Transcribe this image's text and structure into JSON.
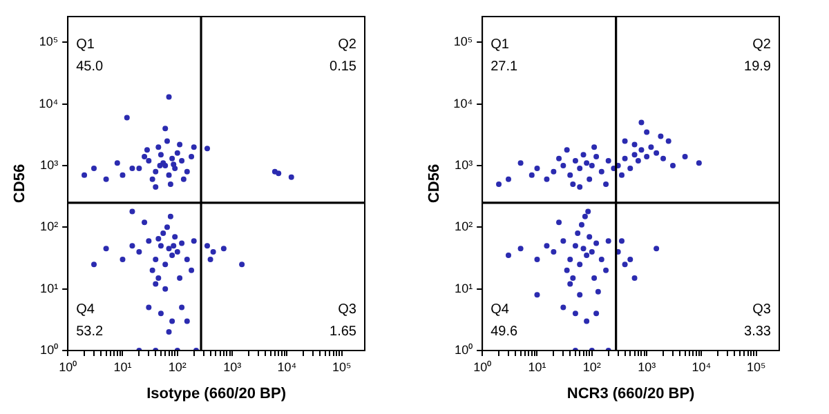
{
  "chart_data": [
    {
      "type": "scatter",
      "xlabel": "Isotype (660/20 BP)",
      "ylabel": "CD56",
      "log": "xy",
      "grid": false,
      "marker": "circle",
      "xlim": [
        1,
        262144
      ],
      "ylim": [
        1,
        262144
      ],
      "xticks": [
        {
          "value": 1,
          "label": "10⁰"
        },
        {
          "value": 2,
          "label": null
        },
        {
          "value": 3,
          "label": null
        },
        {
          "value": 4,
          "label": null
        },
        {
          "value": 5,
          "label": null
        },
        {
          "value": 6,
          "label": null
        },
        {
          "value": 7,
          "label": null
        },
        {
          "value": 8,
          "label": null
        },
        {
          "value": 9,
          "label": null
        },
        {
          "value": 10,
          "label": "10¹"
        },
        {
          "value": 20,
          "label": null
        },
        {
          "value": 30,
          "label": null
        },
        {
          "value": 40,
          "label": null
        },
        {
          "value": 50,
          "label": null
        },
        {
          "value": 60,
          "label": null
        },
        {
          "value": 70,
          "label": null
        },
        {
          "value": 80,
          "label": null
        },
        {
          "value": 90,
          "label": null
        },
        {
          "value": 100,
          "label": "10²"
        },
        {
          "value": 200,
          "label": null
        },
        {
          "value": 300,
          "label": null
        },
        {
          "value": 400,
          "label": null
        },
        {
          "value": 500,
          "label": null
        },
        {
          "value": 600,
          "label": null
        },
        {
          "value": 700,
          "label": null
        },
        {
          "value": 800,
          "label": null
        },
        {
          "value": 900,
          "label": null
        },
        {
          "value": 1000,
          "label": "10³"
        },
        {
          "value": 2000,
          "label": null
        },
        {
          "value": 3000,
          "label": null
        },
        {
          "value": 4000,
          "label": null
        },
        {
          "value": 5000,
          "label": null
        },
        {
          "value": 6000,
          "label": null
        },
        {
          "value": 7000,
          "label": null
        },
        {
          "value": 8000,
          "label": null
        },
        {
          "value": 9000,
          "label": null
        },
        {
          "value": 10000,
          "label": "10⁴"
        },
        {
          "value": 20000,
          "label": null
        },
        {
          "value": 30000,
          "label": null
        },
        {
          "value": 40000,
          "label": null
        },
        {
          "value": 50000,
          "label": null
        },
        {
          "value": 60000,
          "label": null
        },
        {
          "value": 70000,
          "label": null
        },
        {
          "value": 80000,
          "label": null
        },
        {
          "value": 90000,
          "label": null
        },
        {
          "value": 100000,
          "label": "10⁵"
        }
      ],
      "yticks": [
        {
          "value": 1,
          "label": "10⁰"
        },
        {
          "value": 10,
          "label": "10¹"
        },
        {
          "value": 100,
          "label": "10²"
        },
        {
          "value": 1000,
          "label": "10³"
        },
        {
          "value": 10000,
          "label": "10⁴"
        },
        {
          "value": 100000,
          "label": "10⁵"
        }
      ],
      "ref_lines": [
        {
          "axis": "x",
          "value": 270,
          "color": "#000000"
        },
        {
          "axis": "y",
          "value": 250,
          "color": "#000000"
        }
      ],
      "annotations": [
        "Q1",
        "45.0",
        "Q2",
        "0.15",
        "Q4",
        "53.2",
        "Q3",
        "1.65"
      ],
      "series": [
        {
          "color": "#2b2bb0",
          "x": [
            20,
            30,
            40,
            50,
            60,
            70,
            80,
            45,
            35,
            55,
            90,
            100,
            120,
            150,
            25,
            15,
            10,
            8,
            5,
            3,
            2,
            65,
            110,
            75,
            40,
            130,
            180,
            200,
            60,
            70,
            12,
            28,
            85,
            48,
            20,
            30,
            40,
            50,
            60,
            70,
            80,
            90,
            100,
            120,
            150,
            35,
            45,
            55,
            65,
            25,
            15,
            10,
            5,
            3,
            200,
            180,
            110,
            40,
            60,
            30,
            50,
            80,
            120,
            150,
            70,
            100,
            40,
            20,
            220,
            15,
            75,
            45,
            85,
            350,
            450,
            400,
            700,
            1500,
            6000,
            7000,
            12000,
            350
          ],
          "values": [
            900,
            1200,
            800,
            1500,
            1000,
            700,
            1300,
            2000,
            600,
            1100,
            900,
            1600,
            1200,
            800,
            1400,
            900,
            700,
            1100,
            600,
            900,
            700,
            2500,
            2200,
            500,
            450,
            600,
            1400,
            2000,
            4000,
            13000,
            6000,
            1800,
            1050,
            1000,
            40,
            60,
            30,
            50,
            25,
            45,
            35,
            70,
            40,
            55,
            30,
            20,
            15,
            80,
            100,
            120,
            50,
            30,
            45,
            25,
            60,
            20,
            15,
            12,
            10,
            5,
            4,
            3,
            5,
            3,
            2,
            1,
            1,
            1,
            1,
            180,
            150,
            65,
            50,
            50,
            40,
            30,
            45,
            25,
            800,
            750,
            650,
            1900
          ]
        }
      ]
    },
    {
      "type": "scatter",
      "xlabel": "NCR3 (660/20 BP)",
      "ylabel": "CD56",
      "log": "xy",
      "grid": false,
      "marker": "circle",
      "xlim": [
        1,
        262144
      ],
      "ylim": [
        1,
        262144
      ],
      "xticks": [
        {
          "value": 1,
          "label": "10⁰"
        },
        {
          "value": 2,
          "label": null
        },
        {
          "value": 3,
          "label": null
        },
        {
          "value": 4,
          "label": null
        },
        {
          "value": 5,
          "label": null
        },
        {
          "value": 6,
          "label": null
        },
        {
          "value": 7,
          "label": null
        },
        {
          "value": 8,
          "label": null
        },
        {
          "value": 9,
          "label": null
        },
        {
          "value": 10,
          "label": "10¹"
        },
        {
          "value": 20,
          "label": null
        },
        {
          "value": 30,
          "label": null
        },
        {
          "value": 40,
          "label": null
        },
        {
          "value": 50,
          "label": null
        },
        {
          "value": 60,
          "label": null
        },
        {
          "value": 70,
          "label": null
        },
        {
          "value": 80,
          "label": null
        },
        {
          "value": 90,
          "label": null
        },
        {
          "value": 100,
          "label": "10²"
        },
        {
          "value": 200,
          "label": null
        },
        {
          "value": 300,
          "label": null
        },
        {
          "value": 400,
          "label": null
        },
        {
          "value": 500,
          "label": null
        },
        {
          "value": 600,
          "label": null
        },
        {
          "value": 700,
          "label": null
        },
        {
          "value": 800,
          "label": null
        },
        {
          "value": 900,
          "label": null
        },
        {
          "value": 1000,
          "label": "10³"
        },
        {
          "value": 2000,
          "label": null
        },
        {
          "value": 3000,
          "label": null
        },
        {
          "value": 4000,
          "label": null
        },
        {
          "value": 5000,
          "label": null
        },
        {
          "value": 6000,
          "label": null
        },
        {
          "value": 7000,
          "label": null
        },
        {
          "value": 8000,
          "label": null
        },
        {
          "value": 9000,
          "label": null
        },
        {
          "value": 10000,
          "label": "10⁴"
        },
        {
          "value": 20000,
          "label": null
        },
        {
          "value": 30000,
          "label": null
        },
        {
          "value": 40000,
          "label": null
        },
        {
          "value": 50000,
          "label": null
        },
        {
          "value": 60000,
          "label": null
        },
        {
          "value": 70000,
          "label": null
        },
        {
          "value": 80000,
          "label": null
        },
        {
          "value": 90000,
          "label": null
        },
        {
          "value": 100000,
          "label": "10⁵"
        }
      ],
      "yticks": [
        {
          "value": 1,
          "label": "10⁰"
        },
        {
          "value": 10,
          "label": "10¹"
        },
        {
          "value": 100,
          "label": "10²"
        },
        {
          "value": 1000,
          "label": "10³"
        },
        {
          "value": 10000,
          "label": "10⁴"
        },
        {
          "value": 100000,
          "label": "10⁵"
        }
      ],
      "ref_lines": [
        {
          "axis": "x",
          "value": 275,
          "color": "#000000"
        },
        {
          "axis": "y",
          "value": 250,
          "color": "#000000"
        }
      ],
      "annotations": [
        "Q1",
        "27.1",
        "Q2",
        "19.9",
        "Q4",
        "49.6",
        "Q3",
        "3.33"
      ],
      "series": [
        {
          "color": "#2b2bb0",
          "x": [
            20,
            30,
            40,
            50,
            60,
            70,
            80,
            90,
            100,
            120,
            150,
            200,
            250,
            15,
            10,
            8,
            5,
            3,
            2,
            35,
            45,
            60,
            110,
            180,
            25,
            300,
            400,
            500,
            600,
            700,
            800,
            1000,
            1200,
            1500,
            2000,
            2500,
            3000,
            1000,
            800,
            5000,
            400,
            350,
            1800,
            600,
            9000,
            20,
            30,
            40,
            50,
            60,
            70,
            80,
            90,
            100,
            120,
            150,
            35,
            45,
            55,
            65,
            25,
            15,
            10,
            5,
            3,
            200,
            180,
            110,
            40,
            60,
            30,
            50,
            80,
            120,
            100,
            50,
            200,
            75,
            85,
            130,
            10,
            300,
            350,
            400,
            500,
            1500,
            600
          ],
          "values": [
            800,
            1000,
            700,
            1200,
            900,
            1500,
            1100,
            600,
            1000,
            1400,
            800,
            1200,
            900,
            600,
            900,
            700,
            1100,
            600,
            500,
            1800,
            500,
            450,
            2000,
            500,
            1300,
            1000,
            1300,
            900,
            1500,
            1200,
            1800,
            1400,
            2000,
            1600,
            1300,
            2500,
            1000,
            3500,
            5000,
            1400,
            2500,
            700,
            3000,
            2200,
            1100,
            40,
            60,
            30,
            50,
            25,
            45,
            35,
            70,
            40,
            55,
            30,
            20,
            15,
            80,
            110,
            120,
            50,
            30,
            45,
            35,
            60,
            20,
            15,
            12,
            8,
            5,
            4,
            3,
            4,
            1,
            1,
            1,
            150,
            180,
            9,
            8,
            40,
            60,
            25,
            30,
            45,
            15
          ]
        }
      ]
    }
  ]
}
